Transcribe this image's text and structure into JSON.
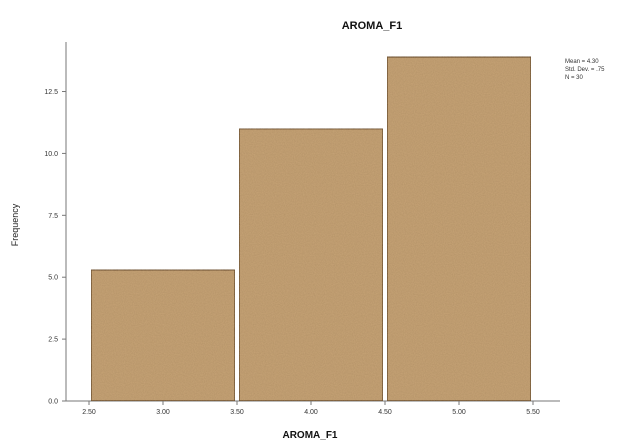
{
  "chart_data": {
    "type": "bar",
    "title": "AROMA_F1",
    "xlabel": "AROMA_F1",
    "ylabel": "Frequency",
    "bins": [
      {
        "from": 2.5,
        "to": 3.5,
        "value": 5.3
      },
      {
        "from": 3.5,
        "to": 4.5,
        "value": 11
      },
      {
        "from": 4.5,
        "to": 5.5,
        "value": 13.9
      }
    ],
    "x_ticks": [
      "2.50",
      "3.00",
      "3.50",
      "4.00",
      "4.50",
      "5.00",
      "5.50"
    ],
    "y_ticks": [
      "0.0",
      "2.5",
      "5.0",
      "7.5",
      "10.0",
      "12.5"
    ],
    "xlim": [
      2.5,
      5.5
    ],
    "ylim": [
      0,
      14.5
    ],
    "bar_color": "#c8a477",
    "bar_outline": "#5a3e22",
    "grid": false,
    "stats_legend": {
      "placement": "top-right",
      "lines": [
        "Mean = 4.30",
        "Std. Dev. = .75",
        "N = 30"
      ]
    }
  }
}
